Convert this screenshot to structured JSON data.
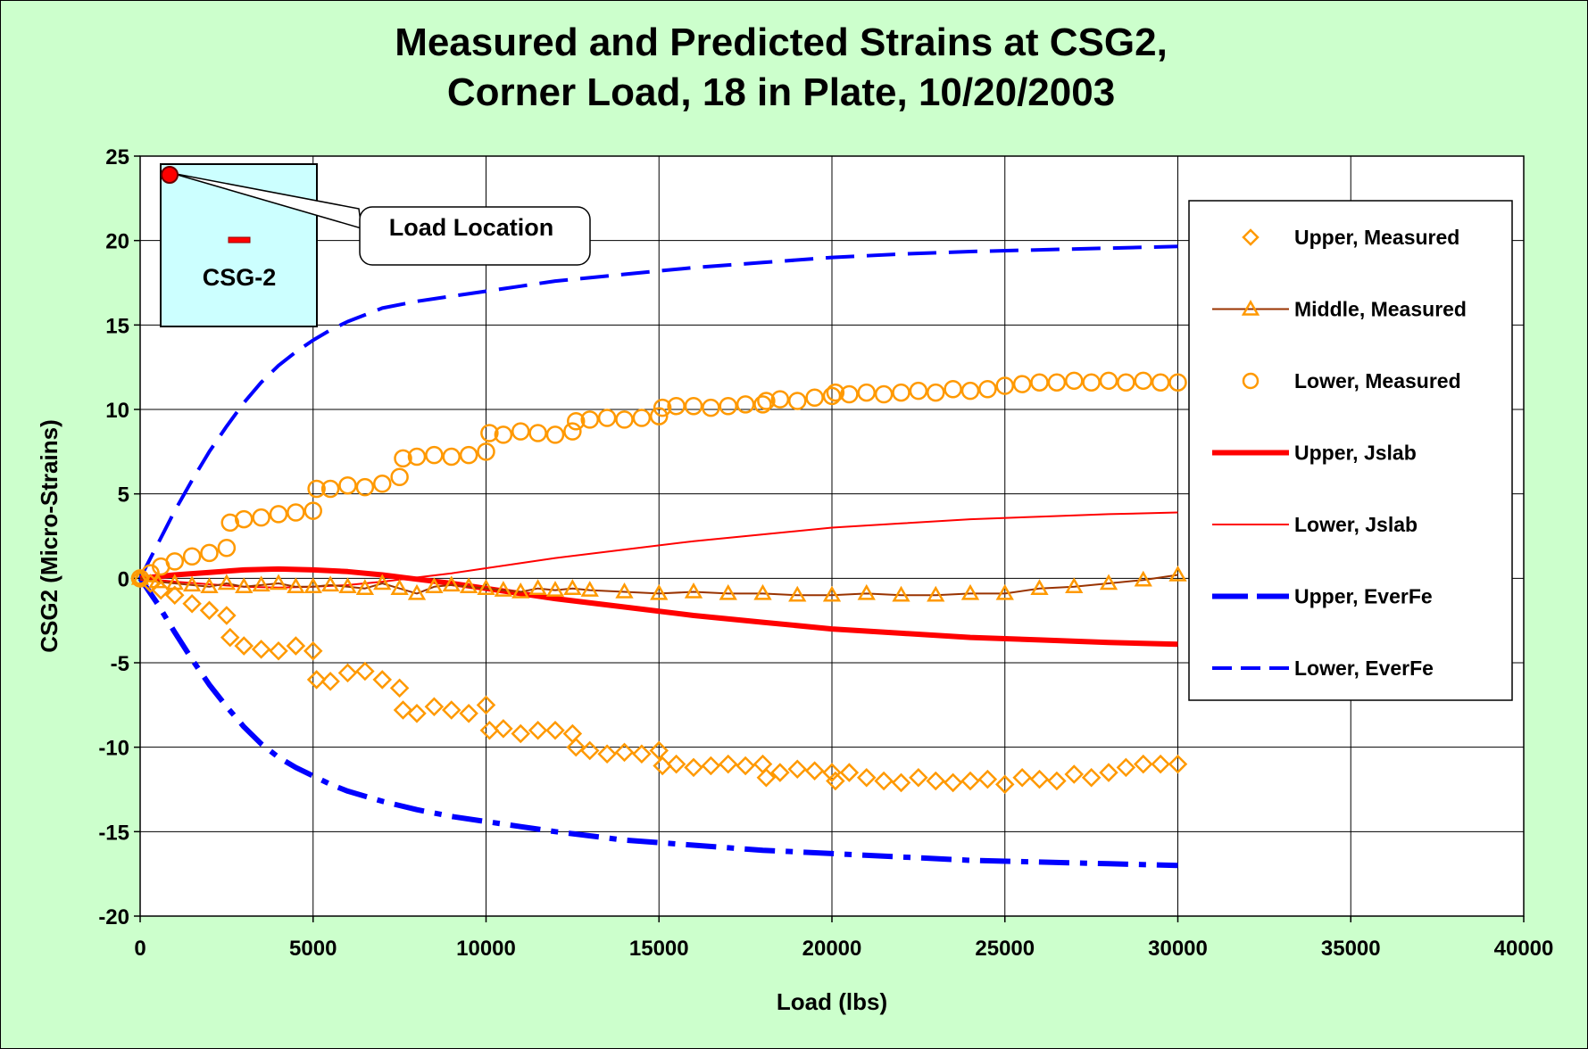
{
  "chart_data": {
    "type": "line",
    "title_lines": [
      "Measured and Predicted Strains at CSG2,",
      "Corner Load, 18 in Plate, 10/20/2003"
    ],
    "xlabel": "Load (lbs)",
    "ylabel": "CSG2 (Micro-Strains)",
    "xlim": [
      0,
      40000
    ],
    "ylim": [
      -20,
      25
    ],
    "xticks": [
      0,
      5000,
      10000,
      15000,
      20000,
      25000,
      30000,
      35000,
      40000
    ],
    "yticks": [
      -20,
      -15,
      -10,
      -5,
      0,
      5,
      10,
      15,
      20,
      25
    ],
    "grid": true,
    "legend_position": "right",
    "series": [
      {
        "name": "Upper, Measured",
        "marker": "diamond",
        "color": "#ff9900",
        "line": "none",
        "x": [
          0,
          300,
          600,
          1000,
          1500,
          2000,
          2500,
          2600,
          3000,
          3500,
          4000,
          4500,
          5000,
          5100,
          5500,
          6000,
          6500,
          7000,
          7500,
          7600,
          8000,
          8500,
          9000,
          9500,
          10000,
          10100,
          10500,
          11000,
          11500,
          12000,
          12500,
          12600,
          13000,
          13500,
          14000,
          14500,
          15000,
          15100,
          15500,
          16000,
          16500,
          17000,
          17500,
          18000,
          18100,
          18500,
          19000,
          19500,
          20000,
          20100,
          20500,
          21000,
          21500,
          22000,
          22500,
          23000,
          23500,
          24000,
          24500,
          25000,
          25500,
          26000,
          26500,
          27000,
          27500,
          28000,
          28500,
          29000,
          29500,
          30000
        ],
        "y": [
          0,
          -0.3,
          -0.7,
          -1.0,
          -1.5,
          -1.9,
          -2.2,
          -3.5,
          -4.0,
          -4.2,
          -4.3,
          -4.0,
          -4.3,
          -6.0,
          -6.1,
          -5.6,
          -5.5,
          -6.0,
          -6.5,
          -7.8,
          -8.0,
          -7.6,
          -7.8,
          -8.0,
          -7.5,
          -9.0,
          -8.9,
          -9.2,
          -9.0,
          -9.0,
          -9.2,
          -10.0,
          -10.2,
          -10.4,
          -10.3,
          -10.4,
          -10.2,
          -11.1,
          -11.0,
          -11.2,
          -11.1,
          -11.0,
          -11.1,
          -11.0,
          -11.8,
          -11.5,
          -11.3,
          -11.4,
          -11.5,
          -12.0,
          -11.5,
          -11.8,
          -12.0,
          -12.1,
          -11.8,
          -12.0,
          -12.1,
          -12.0,
          -11.9,
          -12.2,
          -11.8,
          -11.9,
          -12.0,
          -11.6,
          -11.8,
          -11.5,
          -11.2,
          -11.0,
          -11.0,
          -11.0
        ]
      },
      {
        "name": "Middle, Measured",
        "marker": "triangle",
        "color": "#ff9900",
        "line_color": "#993300",
        "line": "solid",
        "x": [
          0,
          500,
          1000,
          1500,
          2000,
          2500,
          3000,
          3500,
          4000,
          4500,
          5000,
          5500,
          6000,
          6500,
          7000,
          7500,
          8000,
          8500,
          9000,
          9500,
          10000,
          10500,
          11000,
          11500,
          12000,
          12500,
          13000,
          14000,
          15000,
          16000,
          17000,
          18000,
          19000,
          20000,
          21000,
          22000,
          23000,
          24000,
          25000,
          26000,
          27000,
          28000,
          29000,
          30000
        ],
        "y": [
          0,
          -0.2,
          -0.3,
          -0.4,
          -0.5,
          -0.3,
          -0.5,
          -0.4,
          -0.3,
          -0.5,
          -0.5,
          -0.4,
          -0.5,
          -0.6,
          -0.3,
          -0.6,
          -0.9,
          -0.5,
          -0.4,
          -0.5,
          -0.6,
          -0.7,
          -0.8,
          -0.6,
          -0.7,
          -0.6,
          -0.7,
          -0.8,
          -0.9,
          -0.8,
          -0.9,
          -0.9,
          -1.0,
          -1.0,
          -0.9,
          -1.0,
          -1.0,
          -0.9,
          -0.9,
          -0.6,
          -0.5,
          -0.3,
          -0.1,
          0.2
        ]
      },
      {
        "name": "Lower, Measured",
        "marker": "circle",
        "color": "#ff9900",
        "line": "none",
        "x": [
          0,
          300,
          600,
          1000,
          1500,
          2000,
          2500,
          2600,
          3000,
          3500,
          4000,
          4500,
          5000,
          5100,
          5500,
          6000,
          6500,
          7000,
          7500,
          7600,
          8000,
          8500,
          9000,
          9500,
          10000,
          10100,
          10500,
          11000,
          11500,
          12000,
          12500,
          12600,
          13000,
          13500,
          14000,
          14500,
          15000,
          15100,
          15500,
          16000,
          16500,
          17000,
          17500,
          18000,
          18100,
          18500,
          19000,
          19500,
          20000,
          20100,
          20500,
          21000,
          21500,
          22000,
          22500,
          23000,
          23500,
          24000,
          24500,
          25000,
          25500,
          26000,
          26500,
          27000,
          27500,
          28000,
          28500,
          29000,
          29500,
          30000
        ],
        "y": [
          0,
          0.3,
          0.7,
          1.0,
          1.3,
          1.5,
          1.8,
          3.3,
          3.5,
          3.6,
          3.8,
          3.9,
          4.0,
          5.3,
          5.3,
          5.5,
          5.4,
          5.6,
          6.0,
          7.1,
          7.2,
          7.3,
          7.2,
          7.3,
          7.5,
          8.6,
          8.5,
          8.7,
          8.6,
          8.5,
          8.7,
          9.3,
          9.4,
          9.5,
          9.4,
          9.5,
          9.6,
          10.1,
          10.2,
          10.2,
          10.1,
          10.2,
          10.3,
          10.3,
          10.5,
          10.6,
          10.5,
          10.7,
          10.8,
          11.0,
          10.9,
          11.0,
          10.9,
          11.0,
          11.1,
          11.0,
          11.2,
          11.1,
          11.2,
          11.4,
          11.5,
          11.6,
          11.6,
          11.7,
          11.6,
          11.7,
          11.6,
          11.7,
          11.6,
          11.6
        ]
      },
      {
        "name": "Upper,  Jslab",
        "color": "#ff0000",
        "line": "solid",
        "width": "thick",
        "x": [
          0,
          1000,
          2000,
          3000,
          4000,
          5000,
          6000,
          7000,
          8000,
          9000,
          10000,
          12000,
          14000,
          16000,
          18000,
          20000,
          22000,
          24000,
          26000,
          28000,
          30000
        ],
        "y": [
          0,
          0.2,
          0.35,
          0.5,
          0.55,
          0.5,
          0.4,
          0.2,
          -0.05,
          -0.3,
          -0.6,
          -1.2,
          -1.7,
          -2.2,
          -2.6,
          -3.0,
          -3.25,
          -3.5,
          -3.65,
          -3.8,
          -3.9
        ]
      },
      {
        "name": "Lower, Jslab",
        "color": "#ff0000",
        "line": "solid",
        "width": "thin",
        "x": [
          0,
          1000,
          2000,
          3000,
          4000,
          5000,
          6000,
          7000,
          8000,
          9000,
          10000,
          12000,
          14000,
          16000,
          18000,
          20000,
          22000,
          24000,
          26000,
          28000,
          30000
        ],
        "y": [
          0,
          -0.2,
          -0.35,
          -0.5,
          -0.55,
          -0.5,
          -0.4,
          -0.2,
          0.05,
          0.3,
          0.6,
          1.2,
          1.7,
          2.2,
          2.6,
          3.0,
          3.25,
          3.5,
          3.65,
          3.8,
          3.9
        ]
      },
      {
        "name": "Upper, EverFe",
        "color": "#0000ff",
        "line": "dashdot",
        "width": "thick",
        "x": [
          0,
          500,
          1000,
          1500,
          2000,
          2500,
          3000,
          3500,
          4000,
          4500,
          5000,
          5500,
          6000,
          6500,
          7000,
          8000,
          9000,
          10000,
          11000,
          12000,
          14000,
          16000,
          18000,
          20000,
          22000,
          24000,
          26000,
          28000,
          30000
        ],
        "y": [
          0,
          -1.5,
          -3.2,
          -4.8,
          -6.3,
          -7.6,
          -8.8,
          -9.8,
          -10.6,
          -11.2,
          -11.7,
          -12.2,
          -12.6,
          -12.9,
          -13.2,
          -13.7,
          -14.1,
          -14.4,
          -14.7,
          -15.0,
          -15.5,
          -15.8,
          -16.1,
          -16.3,
          -16.5,
          -16.7,
          -16.8,
          -16.9,
          -17.0
        ]
      },
      {
        "name": "Lower, EverFe",
        "color": "#0000ff",
        "line": "dashed",
        "width": "medium",
        "x": [
          0,
          500,
          1000,
          1500,
          2000,
          2500,
          3000,
          3500,
          4000,
          4500,
          5000,
          5500,
          6000,
          6500,
          7000,
          8000,
          9000,
          10000,
          11000,
          12000,
          14000,
          16000,
          18000,
          20000,
          22000,
          24000,
          26000,
          28000,
          30000
        ],
        "y": [
          0,
          2.0,
          4.0,
          5.8,
          7.5,
          9.0,
          10.4,
          11.6,
          12.6,
          13.4,
          14.1,
          14.7,
          15.2,
          15.6,
          16.0,
          16.4,
          16.7,
          17.0,
          17.3,
          17.6,
          18.0,
          18.4,
          18.7,
          19.0,
          19.2,
          19.35,
          19.45,
          19.55,
          19.65
        ]
      }
    ],
    "inset": {
      "label": "CSG-2",
      "callout": "Load Location"
    }
  }
}
